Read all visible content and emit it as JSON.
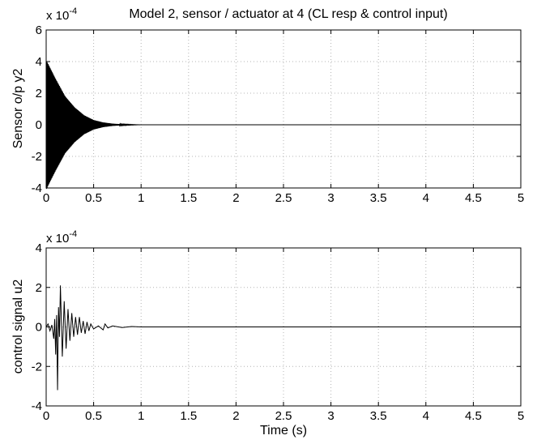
{
  "chart_data": [
    {
      "type": "line",
      "title": "Model 2, sensor / actuator at 4 (CL resp & control input)",
      "xlabel": "",
      "ylabel": "Sensor o/p y2",
      "exponent_label": "x 10",
      "exponent_power": "-4",
      "xlim": [
        0,
        5
      ],
      "ylim": [
        -4,
        6
      ],
      "xticks": [
        "0",
        "0.5",
        "1",
        "1.5",
        "2",
        "2.5",
        "3",
        "3.5",
        "4",
        "4.5",
        "5"
      ],
      "yticks": [
        "-4",
        "-2",
        "0",
        "2",
        "4",
        "6"
      ],
      "grid": true,
      "series": [
        {
          "color": "#000000",
          "signal": "decaying_oscillation",
          "envelope_points": [
            {
              "x": 0.0,
              "y": 4.1
            },
            {
              "x": 0.1,
              "y": 2.9
            },
            {
              "x": 0.2,
              "y": 1.8
            },
            {
              "x": 0.3,
              "y": 1.1
            },
            {
              "x": 0.4,
              "y": 0.6
            },
            {
              "x": 0.5,
              "y": 0.3
            },
            {
              "x": 0.6,
              "y": 0.15
            },
            {
              "x": 0.7,
              "y": 0.07
            },
            {
              "x": 0.8,
              "y": 0.03
            },
            {
              "x": 1.0,
              "y": 0.0
            },
            {
              "x": 5.0,
              "y": 0.0
            }
          ]
        }
      ]
    },
    {
      "type": "line",
      "title": "",
      "xlabel": "Time (s)",
      "ylabel": "control signal u2",
      "exponent_label": "x 10",
      "exponent_power": "-4",
      "xlim": [
        0,
        5
      ],
      "ylim": [
        -4,
        4
      ],
      "xticks": [
        "0",
        "0.5",
        "1",
        "1.5",
        "2",
        "2.5",
        "3",
        "3.5",
        "4",
        "4.5",
        "5"
      ],
      "yticks": [
        "-4",
        "-2",
        "0",
        "2",
        "4"
      ],
      "grid": true,
      "series": [
        {
          "color": "#000000",
          "points": [
            {
              "x": 0.0,
              "y": 0.0
            },
            {
              "x": 0.02,
              "y": 0.15
            },
            {
              "x": 0.04,
              "y": -0.2
            },
            {
              "x": 0.06,
              "y": 0.1
            },
            {
              "x": 0.08,
              "y": -0.6
            },
            {
              "x": 0.09,
              "y": 0.4
            },
            {
              "x": 0.1,
              "y": -1.4
            },
            {
              "x": 0.11,
              "y": 0.6
            },
            {
              "x": 0.12,
              "y": -3.2
            },
            {
              "x": 0.13,
              "y": 1.0
            },
            {
              "x": 0.14,
              "y": -0.5
            },
            {
              "x": 0.15,
              "y": 2.1
            },
            {
              "x": 0.17,
              "y": -1.5
            },
            {
              "x": 0.19,
              "y": 1.3
            },
            {
              "x": 0.21,
              "y": -1.1
            },
            {
              "x": 0.23,
              "y": 0.9
            },
            {
              "x": 0.25,
              "y": -0.7
            },
            {
              "x": 0.27,
              "y": 0.7
            },
            {
              "x": 0.29,
              "y": -0.5
            },
            {
              "x": 0.31,
              "y": 0.5
            },
            {
              "x": 0.33,
              "y": -0.4
            },
            {
              "x": 0.35,
              "y": 0.5
            },
            {
              "x": 0.37,
              "y": -0.3
            },
            {
              "x": 0.39,
              "y": 0.3
            },
            {
              "x": 0.41,
              "y": -0.35
            },
            {
              "x": 0.43,
              "y": 0.25
            },
            {
              "x": 0.45,
              "y": -0.2
            },
            {
              "x": 0.47,
              "y": 0.15
            },
            {
              "x": 0.5,
              "y": -0.1
            },
            {
              "x": 0.55,
              "y": 0.05
            },
            {
              "x": 0.6,
              "y": -0.15
            },
            {
              "x": 0.62,
              "y": 0.15
            },
            {
              "x": 0.65,
              "y": -0.05
            },
            {
              "x": 0.7,
              "y": 0.05
            },
            {
              "x": 0.8,
              "y": -0.03
            },
            {
              "x": 0.9,
              "y": 0.02
            },
            {
              "x": 1.0,
              "y": 0.0
            },
            {
              "x": 5.0,
              "y": 0.0
            }
          ]
        }
      ]
    }
  ]
}
